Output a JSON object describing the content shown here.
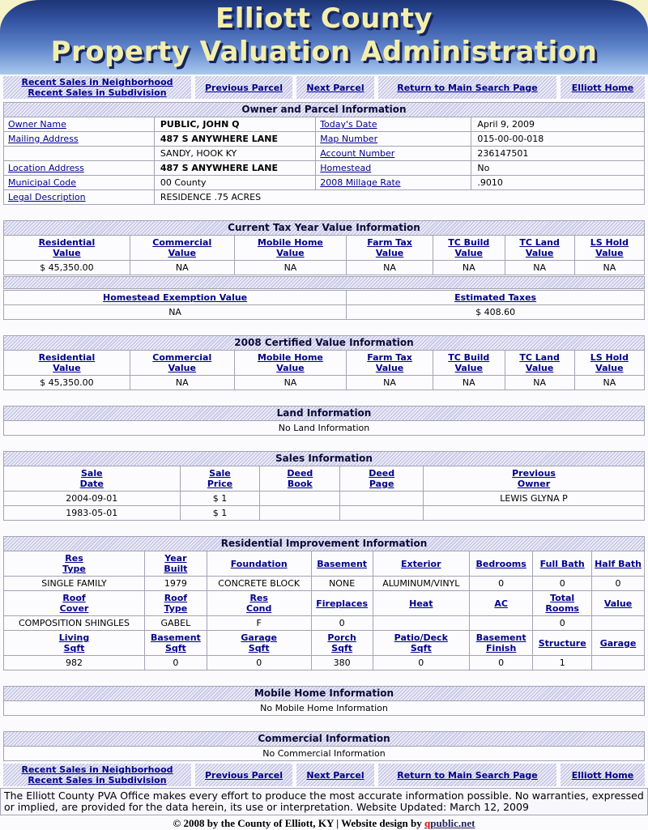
{
  "header": {
    "title_line1": "Elliott County",
    "title_line2": "Property Valuation Administration"
  },
  "nav": {
    "recent_neighborhood": "Recent Sales in Neighborhood",
    "recent_subdivision": "Recent Sales in Subdivision",
    "previous_parcel": "Previous Parcel",
    "next_parcel": "Next Parcel",
    "return_main": "Return to Main Search Page",
    "home": "Elliott Home"
  },
  "owner_parcel": {
    "title": "Owner and Parcel Information",
    "labels": {
      "owner_name": "Owner Name",
      "mailing_address": "Mailing Address",
      "location_address": "Location Address",
      "municipal_code": "Municipal Code",
      "legal_description": "Legal Description",
      "todays_date": "Today's Date",
      "map_number": "Map Number",
      "account_number": "Account Number",
      "homestead": "Homestead",
      "millage_rate": "2008 Millage Rate"
    },
    "values": {
      "owner_name": "PUBLIC, JOHN Q",
      "mailing_address1": "487 S ANYWHERE LANE",
      "mailing_address2": "SANDY, HOOK KY",
      "location_address": "487 S ANYWHERE LANE",
      "municipal_code": "00 County",
      "legal_description": "RESIDENCE .75 ACRES",
      "todays_date": "April 9, 2009",
      "map_number": "015-00-00-018",
      "account_number": "236147501",
      "homestead": "No",
      "millage_rate": ".9010"
    }
  },
  "value_columns": [
    "Residential\nValue",
    "Commercial\nValue",
    "Mobile Home\nValue",
    "Farm Tax\nValue",
    "TC Build\nValue",
    "TC Land\nValue",
    "LS Hold\nValue"
  ],
  "current_tax": {
    "title": "Current Tax Year Value Information",
    "values": [
      "$ 45,350.00",
      "NA",
      "NA",
      "NA",
      "NA",
      "NA",
      "NA"
    ],
    "homestead_exemption_label": "Homestead Exemption Value",
    "estimated_taxes_label": "Estimated Taxes",
    "homestead_exemption_value": "NA",
    "estimated_taxes_value": "$ 408.60"
  },
  "certified": {
    "title": "2008 Certified Value Information",
    "values": [
      "$ 45,350.00",
      "NA",
      "NA",
      "NA",
      "NA",
      "NA",
      "NA"
    ]
  },
  "land": {
    "title": "Land Information",
    "empty": "No Land Information"
  },
  "sales": {
    "title": "Sales Information",
    "columns": [
      "Sale\nDate",
      "Sale\nPrice",
      "Deed\nBook",
      "Deed\nPage",
      "Previous\nOwner"
    ],
    "rows": [
      [
        "2004-09-01",
        "$ 1",
        "",
        "",
        "LEWIS GLYNA P"
      ],
      [
        "1983-05-01",
        "$ 1",
        "",
        "",
        ""
      ]
    ]
  },
  "residential": {
    "title": "Residential Improvement Information",
    "row1_headers": [
      "Res\nType",
      "Year\nBuilt",
      "Foundation",
      "Basement",
      "Exterior",
      "Bedrooms",
      "Full Bath",
      "Half Bath"
    ],
    "row1_values": [
      "SINGLE FAMILY",
      "1979",
      "CONCRETE BLOCK",
      "NONE",
      "ALUMINUM/VINYL",
      "0",
      "0",
      "0"
    ],
    "row2_headers": [
      "Roof\nCover",
      "Roof\nType",
      "Res\nCond",
      "Fireplaces",
      "Heat",
      "AC",
      "Total\nRooms",
      "Value"
    ],
    "row2_values": [
      "COMPOSITION SHINGLES",
      "GABEL",
      "F",
      "0",
      "",
      "",
      "0",
      ""
    ],
    "row3_headers": [
      "Living\nSqft",
      "Basement\nSqft",
      "Garage\nSqft",
      "Porch\nSqft",
      "Patio/Deck\nSqft",
      "Basement\nFinish",
      "Structure",
      "Garage"
    ],
    "row3_values": [
      "982",
      "0",
      "0",
      "380",
      "0",
      "0",
      "1",
      ""
    ]
  },
  "mobile_home": {
    "title": "Mobile Home Information",
    "empty": "No Mobile Home Information"
  },
  "commercial": {
    "title": "Commercial Information",
    "empty": "No Commercial Information"
  },
  "disclaimer": "The Elliott County PVA Office makes every effort to produce the most accurate information possible. No warranties, expressed or implied, are provided for the data herein, its use or interpretation. Website Updated: March 12, 2009",
  "footer": {
    "copyright": "© 2008 by the County of Elliott, KY | Website design by",
    "link_q": "q",
    "link_rest": "public.net"
  },
  "colors": {
    "accent_lavender": "#c9c9e8",
    "link_navy": "#00008b",
    "header_gradient_top": "#1d3576",
    "header_gradient_bottom": "#a9c8ee",
    "title_cream": "#f3eeac",
    "qpublic_red": "#e40000"
  }
}
